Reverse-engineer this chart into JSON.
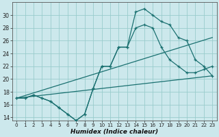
{
  "xlabel": "Humidex (Indice chaleur)",
  "background_color": "#cce8ec",
  "grid_color": "#99cccc",
  "line_color": "#1a7070",
  "xlim": [
    -0.5,
    23.5
  ],
  "ylim": [
    13.5,
    32
  ],
  "yticks": [
    14,
    16,
    18,
    20,
    22,
    24,
    26,
    28,
    30
  ],
  "xticks": [
    0,
    1,
    2,
    3,
    4,
    5,
    6,
    7,
    8,
    9,
    10,
    11,
    12,
    13,
    14,
    15,
    16,
    17,
    18,
    19,
    20,
    21,
    22,
    23
  ],
  "curve1_x": [
    0,
    1,
    2,
    3,
    4,
    5,
    6,
    7,
    8,
    9,
    10,
    11,
    12,
    13,
    14,
    15,
    16,
    17,
    18,
    19,
    20,
    21,
    22,
    23
  ],
  "curve1_y": [
    17,
    17,
    17.5,
    17,
    16.5,
    15.5,
    14.5,
    13.5,
    14.5,
    18.5,
    22,
    22,
    25,
    25,
    30.5,
    31,
    30,
    29,
    28.5,
    26.5,
    26,
    23,
    22,
    20.5
  ],
  "curve2_x": [
    0,
    1,
    2,
    3,
    4,
    5,
    6,
    7,
    8,
    9,
    10,
    11,
    12,
    13,
    14,
    15,
    16,
    17,
    18,
    19,
    20,
    21,
    22,
    23
  ],
  "curve2_y": [
    17,
    17,
    17.5,
    17,
    16.5,
    15.5,
    14.5,
    13.5,
    14.5,
    18.5,
    22,
    22,
    25,
    25,
    28,
    28.5,
    28,
    25,
    23,
    22,
    21,
    21,
    21.5,
    22
  ],
  "line1_x": [
    0,
    23
  ],
  "line1_y": [
    17,
    26.5
  ],
  "line2_x": [
    0,
    23
  ],
  "line2_y": [
    17,
    20.5
  ]
}
